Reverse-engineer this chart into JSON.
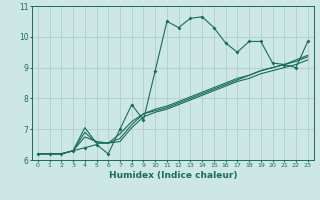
{
  "xlabel": "Humidex (Indice chaleur)",
  "bg_color": "#cde8e4",
  "line_color": "#1a6b5a",
  "grid_color": "#aed0cb",
  "xlim": [
    -0.5,
    23.5
  ],
  "ylim": [
    6,
    11
  ],
  "xticks": [
    0,
    1,
    2,
    3,
    4,
    5,
    6,
    7,
    8,
    9,
    10,
    11,
    12,
    13,
    14,
    15,
    16,
    17,
    18,
    19,
    20,
    21,
    22,
    23
  ],
  "yticks": [
    6,
    7,
    8,
    9,
    10,
    11
  ],
  "series_main": [
    6.2,
    6.2,
    6.2,
    6.3,
    6.4,
    6.5,
    6.2,
    7.0,
    7.8,
    7.3,
    8.9,
    10.5,
    10.3,
    10.6,
    10.65,
    10.3,
    9.8,
    9.5,
    9.85,
    9.85,
    9.15,
    9.1,
    9.0,
    9.85
  ],
  "series_others": [
    [
      6.2,
      6.2,
      6.2,
      6.3,
      6.9,
      6.55,
      6.55,
      6.7,
      7.15,
      7.5,
      7.6,
      7.7,
      7.85,
      8.0,
      8.15,
      8.3,
      8.45,
      8.6,
      8.75,
      8.9,
      9.0,
      9.1,
      9.25,
      9.4
    ],
    [
      6.2,
      6.2,
      6.2,
      6.3,
      6.75,
      6.6,
      6.55,
      6.85,
      7.25,
      7.5,
      7.65,
      7.75,
      7.9,
      8.05,
      8.2,
      8.35,
      8.5,
      8.65,
      8.75,
      8.9,
      9.0,
      9.1,
      9.2,
      9.35
    ],
    [
      6.2,
      6.2,
      6.2,
      6.3,
      7.05,
      6.55,
      6.55,
      6.6,
      7.05,
      7.4,
      7.55,
      7.65,
      7.8,
      7.95,
      8.1,
      8.25,
      8.4,
      8.55,
      8.65,
      8.8,
      8.9,
      9.0,
      9.1,
      9.25
    ]
  ]
}
